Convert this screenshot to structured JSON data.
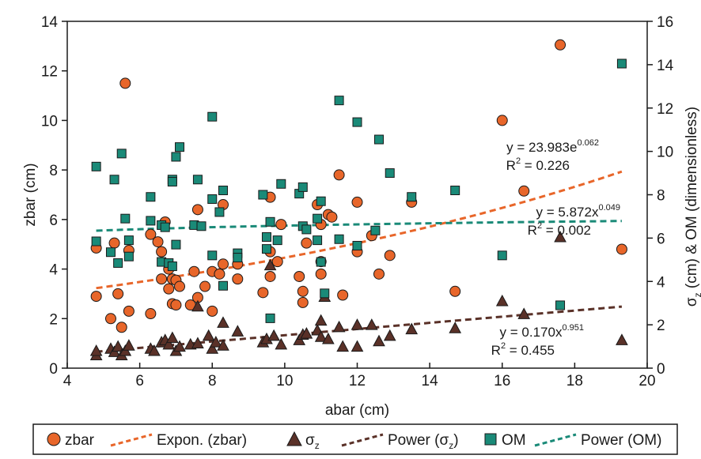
{
  "chart_data": {
    "type": "scatter",
    "xlabel": "abar (cm)",
    "ylabel_left": "zbar (cm)",
    "ylabel_right_parts": [
      "σ",
      "z",
      " (cm) & OM (dimensionless)"
    ],
    "xlim": [
      4,
      20
    ],
    "ylim_left": [
      0,
      14
    ],
    "ylim_right": [
      0,
      16
    ],
    "x_ticks": [
      4,
      6,
      8,
      10,
      12,
      14,
      16,
      18,
      20
    ],
    "y_ticks_left": [
      0,
      2,
      4,
      6,
      8,
      10,
      12,
      14
    ],
    "y_ticks_right": [
      0,
      2,
      4,
      6,
      8,
      10,
      12,
      14,
      16
    ],
    "colors": {
      "zbar": "#e8662a",
      "sigma": "#5a3128",
      "om": "#1a8a78",
      "axis": "#1a1a1a"
    },
    "series": [
      {
        "name": "zbar",
        "axis": "left",
        "marker": "circle",
        "points": [
          [
            4.8,
            4.85
          ],
          [
            4.8,
            2.9
          ],
          [
            5.2,
            2.0
          ],
          [
            5.3,
            5.05
          ],
          [
            5.4,
            3.0
          ],
          [
            5.5,
            1.65
          ],
          [
            5.6,
            11.5
          ],
          [
            5.7,
            4.75
          ],
          [
            5.7,
            2.3
          ],
          [
            6.3,
            5.4
          ],
          [
            6.3,
            2.2
          ],
          [
            6.5,
            5.1
          ],
          [
            6.6,
            4.7
          ],
          [
            6.6,
            3.6
          ],
          [
            6.7,
            5.9
          ],
          [
            6.8,
            3.2
          ],
          [
            6.8,
            4.0
          ],
          [
            6.9,
            3.6
          ],
          [
            6.9,
            2.6
          ],
          [
            7.0,
            3.55
          ],
          [
            7.0,
            2.55
          ],
          [
            7.1,
            3.3
          ],
          [
            7.4,
            2.55
          ],
          [
            7.5,
            3.9
          ],
          [
            7.6,
            6.4
          ],
          [
            7.6,
            2.85
          ],
          [
            7.8,
            3.3
          ],
          [
            8.0,
            3.9
          ],
          [
            8.0,
            2.3
          ],
          [
            8.2,
            3.8
          ],
          [
            8.3,
            6.6
          ],
          [
            8.3,
            4.2
          ],
          [
            8.7,
            4.2
          ],
          [
            8.7,
            3.6
          ],
          [
            9.4,
            3.05
          ],
          [
            9.6,
            6.9
          ],
          [
            9.6,
            4.7
          ],
          [
            9.6,
            3.7
          ],
          [
            9.8,
            4.3
          ],
          [
            9.9,
            5.8
          ],
          [
            10.4,
            3.7
          ],
          [
            10.5,
            3.1
          ],
          [
            10.5,
            2.65
          ],
          [
            10.6,
            5.05
          ],
          [
            10.9,
            6.6
          ],
          [
            11.0,
            3.8
          ],
          [
            11.0,
            4.3
          ],
          [
            11.0,
            5.8
          ],
          [
            11.2,
            6.2
          ],
          [
            11.3,
            6.1
          ],
          [
            11.5,
            7.8
          ],
          [
            11.6,
            2.95
          ],
          [
            12.0,
            6.7
          ],
          [
            12.0,
            4.7
          ],
          [
            12.4,
            5.35
          ],
          [
            12.6,
            3.8
          ],
          [
            12.9,
            4.55
          ],
          [
            13.5,
            6.7
          ],
          [
            14.7,
            3.1
          ],
          [
            16.0,
            10.0
          ],
          [
            16.6,
            7.15
          ],
          [
            17.6,
            13.05
          ],
          [
            19.3,
            4.8
          ]
        ]
      },
      {
        "name": "σz",
        "axis": "right",
        "marker": "triangle",
        "points": [
          [
            4.8,
            0.6
          ],
          [
            4.8,
            0.8
          ],
          [
            5.2,
            0.9
          ],
          [
            5.3,
            0.75
          ],
          [
            5.4,
            1.0
          ],
          [
            5.5,
            0.6
          ],
          [
            5.6,
            0.8
          ],
          [
            5.7,
            1.05
          ],
          [
            6.3,
            0.9
          ],
          [
            6.4,
            0.8
          ],
          [
            6.6,
            1.2
          ],
          [
            6.7,
            1.3
          ],
          [
            6.8,
            1.1
          ],
          [
            6.9,
            1.4
          ],
          [
            7.0,
            0.8
          ],
          [
            7.1,
            1.0
          ],
          [
            7.4,
            1.1
          ],
          [
            7.6,
            1.15
          ],
          [
            7.6,
            2.85
          ],
          [
            7.9,
            1.5
          ],
          [
            8.0,
            0.9
          ],
          [
            8.1,
            1.2
          ],
          [
            8.3,
            1.05
          ],
          [
            8.3,
            2.1
          ],
          [
            8.7,
            1.7
          ],
          [
            9.4,
            1.2
          ],
          [
            9.5,
            1.35
          ],
          [
            9.6,
            4.75
          ],
          [
            9.7,
            1.5
          ],
          [
            9.9,
            1.1
          ],
          [
            10.4,
            1.3
          ],
          [
            10.5,
            1.55
          ],
          [
            10.6,
            1.6
          ],
          [
            10.9,
            1.75
          ],
          [
            11.0,
            2.2
          ],
          [
            11.0,
            1.45
          ],
          [
            11.1,
            3.3
          ],
          [
            11.2,
            1.35
          ],
          [
            11.5,
            1.9
          ],
          [
            11.6,
            1.0
          ],
          [
            12.0,
            1.0
          ],
          [
            12.0,
            2.0
          ],
          [
            12.4,
            2.0
          ],
          [
            12.6,
            1.25
          ],
          [
            12.9,
            1.5
          ],
          [
            13.5,
            1.8
          ],
          [
            14.7,
            1.85
          ],
          [
            16.0,
            3.1
          ],
          [
            16.6,
            2.5
          ],
          [
            17.6,
            6.05
          ],
          [
            19.3,
            1.3
          ]
        ]
      },
      {
        "name": "OM",
        "axis": "right",
        "marker": "square",
        "points": [
          [
            4.8,
            9.3
          ],
          [
            4.8,
            5.85
          ],
          [
            5.2,
            5.35
          ],
          [
            5.3,
            8.7
          ],
          [
            5.4,
            4.85
          ],
          [
            5.5,
            9.9
          ],
          [
            5.6,
            6.9
          ],
          [
            5.7,
            5.9
          ],
          [
            5.7,
            5.15
          ],
          [
            6.3,
            7.9
          ],
          [
            6.3,
            6.8
          ],
          [
            6.6,
            6.6
          ],
          [
            6.6,
            4.9
          ],
          [
            6.7,
            6.5
          ],
          [
            6.8,
            4.85
          ],
          [
            6.9,
            8.7
          ],
          [
            6.9,
            8.6
          ],
          [
            6.9,
            4.7
          ],
          [
            7.0,
            5.7
          ],
          [
            7.0,
            9.75
          ],
          [
            7.1,
            10.2
          ],
          [
            7.5,
            6.6
          ],
          [
            7.6,
            8.7
          ],
          [
            7.7,
            6.55
          ],
          [
            8.0,
            5.2
          ],
          [
            8.0,
            7.8
          ],
          [
            8.0,
            11.6
          ],
          [
            8.2,
            7.2
          ],
          [
            8.3,
            8.2
          ],
          [
            8.3,
            3.8
          ],
          [
            8.7,
            5.3
          ],
          [
            8.7,
            5.1
          ],
          [
            9.4,
            8.0
          ],
          [
            9.5,
            6.05
          ],
          [
            9.5,
            5.5
          ],
          [
            9.6,
            6.75
          ],
          [
            9.6,
            2.3
          ],
          [
            9.8,
            5.9
          ],
          [
            9.9,
            8.5
          ],
          [
            10.4,
            8.05
          ],
          [
            10.5,
            8.35
          ],
          [
            10.5,
            6.55
          ],
          [
            10.6,
            6.4
          ],
          [
            10.9,
            6.9
          ],
          [
            10.9,
            5.9
          ],
          [
            11.0,
            7.7
          ],
          [
            11.0,
            4.9
          ],
          [
            11.1,
            3.45
          ],
          [
            11.5,
            12.35
          ],
          [
            11.5,
            5.95
          ],
          [
            12.0,
            11.35
          ],
          [
            12.0,
            5.65
          ],
          [
            12.5,
            6.35
          ],
          [
            12.6,
            10.55
          ],
          [
            12.9,
            9.0
          ],
          [
            13.5,
            7.9
          ],
          [
            14.7,
            8.2
          ],
          [
            16.0,
            5.2
          ],
          [
            17.6,
            2.9
          ],
          [
            19.3,
            14.05
          ]
        ]
      }
    ],
    "trendlines": [
      {
        "name": "Expon. (zbar)",
        "axis": "left",
        "kind": "exponential",
        "a": 23.983,
        "b": 0.062,
        "x_range": [
          4.8,
          19.3
        ]
      },
      {
        "name": "Power (σz)",
        "axis": "right",
        "kind": "power",
        "a": 0.17,
        "b": 0.951,
        "x_range": [
          4.8,
          19.3
        ]
      },
      {
        "name": "Power (OM)",
        "axis": "right",
        "kind": "power",
        "a": 5.872,
        "b": 0.049,
        "x_range": [
          4.8,
          19.3
        ]
      }
    ],
    "annotations": [
      {
        "eq_base": "y = 23.983e",
        "eq_sup": "0.062",
        "r2": "0.226",
        "for": "Expon. (zbar)"
      },
      {
        "eq_base": "y = 5.872x",
        "eq_sup": "0.049",
        "r2": "0.002",
        "for": "Power (OM)"
      },
      {
        "eq_base": "y = 0.170x",
        "eq_sup": "0.951",
        "r2": "0.455",
        "for": "Power (σz)"
      }
    ],
    "legend": {
      "position": "bottom",
      "items": [
        {
          "kind": "marker",
          "marker": "circle",
          "color_key": "zbar",
          "label": "zbar"
        },
        {
          "kind": "line",
          "color_key": "zbar",
          "label": "Expon. (zbar)"
        },
        {
          "kind": "marker",
          "marker": "triangle",
          "color_key": "sigma",
          "label": "σ",
          "sub": "z"
        },
        {
          "kind": "line",
          "color_key": "sigma",
          "label": "Power (σ",
          "sub": "z",
          "suffix": ")"
        },
        {
          "kind": "marker",
          "marker": "square",
          "color_key": "om",
          "label": "OM"
        },
        {
          "kind": "line",
          "color_key": "om",
          "label": "Power (OM)"
        }
      ]
    }
  }
}
